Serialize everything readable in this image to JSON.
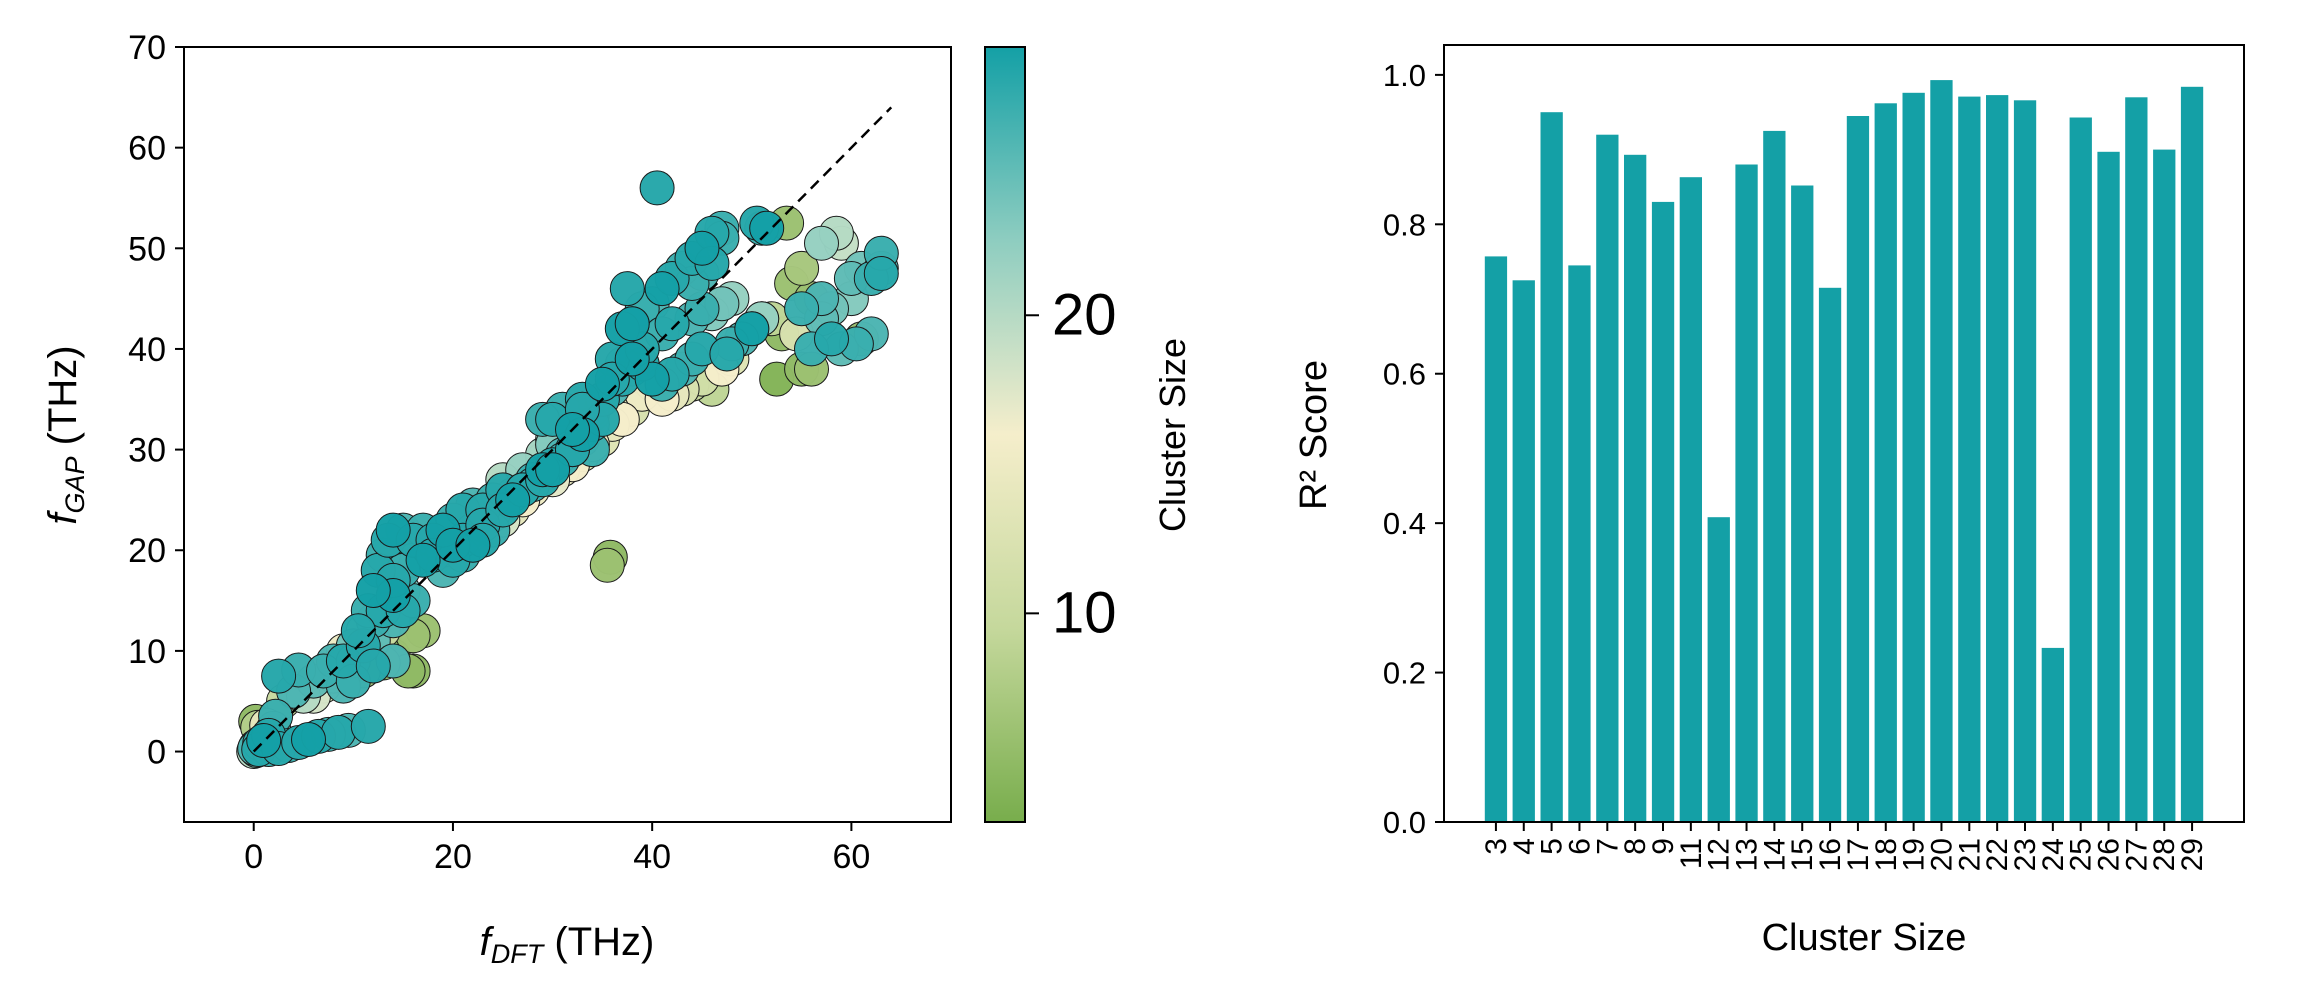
{
  "colors": {
    "bar": "#14a0a6",
    "diagonal": "#000000",
    "colormap": [
      "#78ad4c",
      "#c5d89c",
      "#f5eecb",
      "#8ecdc0",
      "#14a0a6"
    ]
  },
  "chart_data": [
    {
      "type": "scatter",
      "title": "",
      "xlabel": "f_DFT (THz)",
      "xlabel_main": "f",
      "xlabel_sub": "DFT",
      "xlabel_unit": " (THz)",
      "ylabel": "f_GAP (THz)",
      "ylabel_main": "f",
      "ylabel_sub": "GAP",
      "ylabel_unit": " (THz)",
      "xlim": [
        -7,
        70
      ],
      "ylim": [
        -7,
        70
      ],
      "xticks": [
        0,
        20,
        40,
        60
      ],
      "xtick_labels": [
        "0",
        "20",
        "40",
        "60"
      ],
      "yticks": [
        0,
        10,
        20,
        30,
        40,
        50,
        60,
        70
      ],
      "ytick_labels": [
        "0",
        "10",
        "20",
        "30",
        "40",
        "50",
        "60",
        "70"
      ],
      "reference_line": {
        "style": "dashed",
        "from": [
          0,
          0
        ],
        "to": [
          64,
          64
        ]
      },
      "colorbar": {
        "label": "Cluster Size",
        "range": [
          3,
          29
        ],
        "ticks": [
          10,
          20
        ],
        "tick_labels": [
          "10",
          "20"
        ]
      },
      "points": [
        [
          0.0,
          0.0,
          20
        ],
        [
          0.1,
          0.3,
          26
        ],
        [
          0.3,
          0.1,
          24
        ],
        [
          0.2,
          0.5,
          22
        ],
        [
          0.5,
          0.2,
          28
        ],
        [
          0.6,
          0.8,
          27
        ],
        [
          0.8,
          0.4,
          25
        ],
        [
          1.0,
          1.1,
          29
        ],
        [
          0.4,
          0.6,
          21
        ],
        [
          1.2,
          0.9,
          26
        ],
        [
          1.5,
          1.6,
          28
        ],
        [
          0.2,
          3.0,
          5
        ],
        [
          0.4,
          2.4,
          8
        ],
        [
          1.3,
          2.6,
          14
        ],
        [
          2.0,
          2.3,
          22
        ],
        [
          2.2,
          3.5,
          27
        ],
        [
          3.0,
          5.0,
          10
        ],
        [
          2.5,
          7.5,
          28
        ],
        [
          4.5,
          8.1,
          27
        ],
        [
          4.0,
          6.0,
          26
        ],
        [
          5.0,
          5.5,
          20
        ],
        [
          1.5,
          0.2,
          27
        ],
        [
          2.5,
          0.3,
          28
        ],
        [
          3.5,
          0.6,
          27
        ],
        [
          4.5,
          0.9,
          28
        ],
        [
          5.5,
          1.2,
          29
        ],
        [
          6.5,
          1.5,
          28
        ],
        [
          7.5,
          1.7,
          27
        ],
        [
          8.5,
          1.9,
          28
        ],
        [
          9.5,
          2.1,
          26
        ],
        [
          11.5,
          2.5,
          28
        ],
        [
          6,
          5.5,
          18
        ],
        [
          6,
          7,
          25
        ],
        [
          7,
          6.5,
          12
        ],
        [
          7,
          8,
          27
        ],
        [
          8,
          7.5,
          20
        ],
        [
          8,
          9,
          26
        ],
        [
          9,
          9,
          28
        ],
        [
          9,
          10,
          15
        ],
        [
          10,
          9,
          27
        ],
        [
          10,
          10.5,
          24
        ],
        [
          11,
          10.5,
          28
        ],
        [
          11,
          12,
          20
        ],
        [
          12,
          11,
          25
        ],
        [
          12,
          13,
          27
        ],
        [
          13,
          12,
          10
        ],
        [
          13,
          14,
          28
        ],
        [
          14,
          13,
          26
        ],
        [
          14,
          15.5,
          29
        ],
        [
          15,
          14,
          28
        ],
        [
          15,
          16,
          24
        ],
        [
          16,
          15,
          27
        ],
        [
          17,
          12,
          6
        ],
        [
          16,
          8,
          5
        ],
        [
          14,
          9,
          26
        ],
        [
          12,
          8.5,
          28
        ],
        [
          11,
          8,
          7
        ],
        [
          10,
          7,
          27
        ],
        [
          9,
          6.5,
          26
        ],
        [
          10.5,
          12,
          28
        ],
        [
          11.5,
          14,
          27
        ],
        [
          12,
          16,
          29
        ],
        [
          12.5,
          18,
          28
        ],
        [
          13,
          19.5,
          27
        ],
        [
          13.5,
          21,
          28
        ],
        [
          14,
          22,
          29
        ],
        [
          15,
          22,
          26
        ],
        [
          16,
          21,
          28
        ],
        [
          17,
          22,
          27
        ],
        [
          18,
          21,
          28
        ],
        [
          19,
          22,
          29
        ],
        [
          20,
          23,
          27
        ],
        [
          21,
          24,
          28
        ],
        [
          22,
          24.5,
          26
        ],
        [
          23,
          24,
          28
        ],
        [
          24,
          25,
          27
        ],
        [
          25,
          26,
          28
        ],
        [
          26,
          25.5,
          22
        ],
        [
          27,
          26,
          28
        ],
        [
          28,
          27,
          27
        ],
        [
          29,
          28,
          29
        ],
        [
          30,
          28.5,
          28
        ],
        [
          31,
          29.5,
          26
        ],
        [
          32,
          30,
          28
        ],
        [
          33,
          31,
          27
        ],
        [
          14,
          17,
          28
        ],
        [
          15,
          18,
          27
        ],
        [
          16,
          19,
          26
        ],
        [
          17,
          19,
          29
        ],
        [
          18,
          19.5,
          28
        ],
        [
          19,
          20,
          27
        ],
        [
          20,
          20.5,
          29
        ],
        [
          21,
          21,
          28
        ],
        [
          22,
          22,
          27
        ],
        [
          23,
          22.5,
          28
        ],
        [
          24,
          23.5,
          26
        ],
        [
          25,
          24,
          28
        ],
        [
          26,
          25,
          29
        ],
        [
          27,
          26,
          28
        ],
        [
          28,
          26.5,
          27
        ],
        [
          29,
          27,
          28
        ],
        [
          30,
          28,
          29
        ],
        [
          31,
          29,
          27
        ],
        [
          32,
          30,
          28
        ],
        [
          33,
          31.5,
          29
        ],
        [
          34,
          32.5,
          28
        ],
        [
          19,
          18,
          26
        ],
        [
          20,
          19,
          28
        ],
        [
          21,
          19.5,
          27
        ],
        [
          22,
          20.5,
          29
        ],
        [
          23,
          21,
          28
        ],
        [
          24,
          22,
          27
        ],
        [
          25,
          23,
          18
        ],
        [
          26,
          24,
          14
        ],
        [
          27,
          25,
          16
        ],
        [
          28,
          26,
          15
        ],
        [
          29,
          27,
          13
        ],
        [
          30,
          27,
          17
        ],
        [
          31,
          28,
          14
        ],
        [
          32,
          28.5,
          16
        ],
        [
          33,
          29.5,
          12
        ],
        [
          34,
          30.5,
          15
        ],
        [
          35,
          31,
          13
        ],
        [
          36,
          32.5,
          14
        ],
        [
          37,
          33,
          16
        ],
        [
          38,
          34,
          12
        ],
        [
          39,
          35.5,
          15
        ],
        [
          40,
          36.5,
          13
        ],
        [
          25,
          27,
          20
        ],
        [
          27,
          28,
          22
        ],
        [
          29,
          29.5,
          21
        ],
        [
          30,
          30.5,
          23
        ],
        [
          31,
          31.5,
          19
        ],
        [
          32,
          32,
          21
        ],
        [
          33,
          33.5,
          25
        ],
        [
          34,
          34,
          27
        ],
        [
          35,
          35,
          28
        ],
        [
          36,
          36,
          26
        ],
        [
          37,
          37,
          28
        ],
        [
          38,
          38,
          27
        ],
        [
          39,
          38.5,
          28
        ],
        [
          40,
          37,
          29
        ],
        [
          41,
          36.5,
          27
        ],
        [
          42,
          37.5,
          28
        ],
        [
          43,
          38,
          26
        ],
        [
          44,
          39,
          27
        ],
        [
          45,
          40,
          28
        ],
        [
          36,
          39,
          28
        ],
        [
          37,
          42,
          29
        ],
        [
          38,
          42.5,
          28
        ],
        [
          39,
          44,
          27
        ],
        [
          40,
          44.5,
          26
        ],
        [
          41,
          46,
          29
        ],
        [
          42,
          47,
          28
        ],
        [
          43,
          48,
          27
        ],
        [
          44,
          49,
          28
        ],
        [
          45,
          50,
          29
        ],
        [
          46,
          51.5,
          28
        ],
        [
          47,
          52,
          27
        ],
        [
          29,
          29,
          20
        ],
        [
          30,
          31,
          21
        ],
        [
          31,
          32.5,
          19
        ],
        [
          32,
          32,
          22
        ],
        [
          33,
          33,
          20
        ],
        [
          34,
          33.5,
          21
        ],
        [
          30,
          33,
          28
        ],
        [
          31,
          34,
          27
        ],
        [
          33,
          35,
          28
        ],
        [
          35,
          36.5,
          29
        ],
        [
          36,
          37,
          28
        ],
        [
          37,
          38.5,
          27
        ],
        [
          38,
          39,
          29
        ],
        [
          39,
          40,
          28
        ],
        [
          41,
          41.5,
          27
        ],
        [
          42,
          42.5,
          28
        ],
        [
          44,
          43,
          26
        ],
        [
          45,
          44,
          27
        ],
        [
          46,
          43.5,
          23
        ],
        [
          47,
          44.5,
          24
        ],
        [
          48,
          45,
          22
        ],
        [
          49,
          41,
          23
        ],
        [
          50,
          42,
          24
        ],
        [
          51,
          43,
          22
        ],
        [
          40.5,
          56,
          28
        ],
        [
          37.5,
          46,
          28
        ],
        [
          38,
          42.5,
          29
        ],
        [
          29,
          33,
          27
        ],
        [
          34,
          30,
          27
        ],
        [
          35,
          33,
          28
        ],
        [
          33,
          34,
          28
        ],
        [
          32,
          32,
          29
        ],
        [
          44,
          46.5,
          27
        ],
        [
          45,
          47.5,
          26
        ],
        [
          46,
          48.5,
          28
        ],
        [
          47,
          51,
          27
        ],
        [
          50.5,
          52.5,
          28
        ],
        [
          51,
          52,
          27
        ],
        [
          51.5,
          52,
          29
        ],
        [
          53.5,
          52.5,
          6
        ],
        [
          52,
          43,
          9
        ],
        [
          53,
          41.5,
          5
        ],
        [
          52.5,
          37,
          4
        ],
        [
          54,
          46.5,
          6
        ],
        [
          55,
          48,
          7
        ],
        [
          56,
          45,
          6
        ],
        [
          57,
          50.5,
          22
        ],
        [
          58.5,
          51.5,
          20
        ],
        [
          59,
          50.5,
          19
        ],
        [
          60,
          45,
          23
        ],
        [
          60,
          47,
          25
        ],
        [
          61,
          48,
          24
        ],
        [
          62,
          47,
          27
        ],
        [
          63,
          48,
          26
        ],
        [
          63,
          49.5,
          27
        ],
        [
          63,
          47.5,
          28
        ],
        [
          62,
          41.5,
          26
        ],
        [
          60.5,
          40.5,
          27
        ],
        [
          61,
          41,
          6
        ],
        [
          59,
          40,
          25
        ],
        [
          58,
          41,
          28
        ],
        [
          56,
          40,
          27
        ],
        [
          57,
          43,
          25
        ],
        [
          58,
          44,
          24
        ],
        [
          55,
          38,
          5
        ],
        [
          56,
          38,
          6
        ],
        [
          54.5,
          41.5,
          12
        ],
        [
          48,
          39,
          13
        ],
        [
          47,
          38,
          16
        ],
        [
          46,
          36,
          9
        ],
        [
          45,
          37,
          11
        ],
        [
          44,
          36.5,
          10
        ],
        [
          43,
          36,
          12
        ],
        [
          42,
          35.5,
          14
        ],
        [
          41,
          35,
          16
        ],
        [
          47.5,
          39.5,
          28
        ],
        [
          48,
          40.5,
          27
        ],
        [
          49,
          41,
          26
        ],
        [
          50,
          42,
          29
        ],
        [
          51,
          43,
          20
        ],
        [
          55,
          44,
          27
        ],
        [
          57,
          45,
          26
        ],
        [
          35.5,
          18.5,
          6
        ],
        [
          35.8,
          19.3,
          5
        ],
        [
          15.5,
          8,
          5
        ],
        [
          14,
          9.5,
          4
        ],
        [
          16,
          11.5,
          6
        ],
        [
          13,
          8.8,
          5
        ]
      ]
    },
    {
      "type": "bar",
      "title": "",
      "xlabel": "Cluster Size",
      "ylabel": "R² Score",
      "ylim": [
        0,
        1.04
      ],
      "yticks": [
        0.0,
        0.2,
        0.4,
        0.6,
        0.8,
        1.0
      ],
      "ytick_labels": [
        "0.0",
        "0.2",
        "0.4",
        "0.6",
        "0.8",
        "1.0"
      ],
      "categories": [
        "3",
        "4",
        "5",
        "6",
        "7",
        "8",
        "9",
        "11",
        "12",
        "13",
        "14",
        "15",
        "16",
        "17",
        "18",
        "19",
        "20",
        "21",
        "22",
        "23",
        "24",
        "25",
        "26",
        "27",
        "28",
        "29"
      ],
      "values": [
        0.757,
        0.725,
        0.95,
        0.745,
        0.92,
        0.893,
        0.83,
        0.863,
        0.408,
        0.88,
        0.925,
        0.852,
        0.715,
        0.945,
        0.962,
        0.976,
        0.993,
        0.971,
        0.973,
        0.966,
        0.233,
        0.943,
        0.897,
        0.97,
        0.9,
        0.984
      ]
    }
  ]
}
